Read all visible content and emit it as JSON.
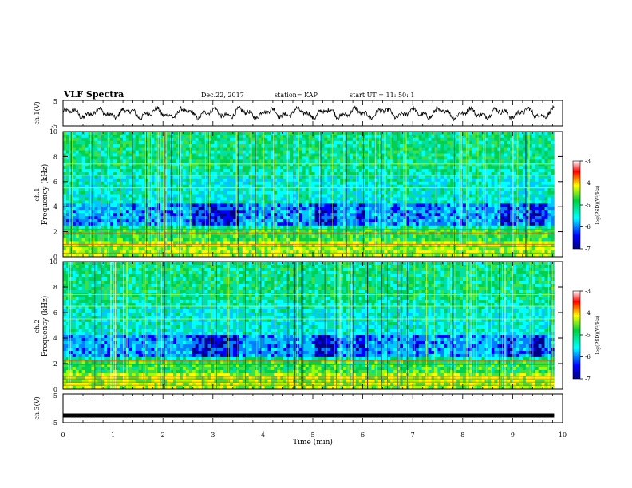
{
  "header": {
    "title": "VLF Spectra",
    "date": "Dec.22, 2017",
    "station": "station= KAP",
    "start": "start  UT =   11: 50: 1"
  },
  "chart_data": [
    {
      "type": "line",
      "panel": "ch1-waveform",
      "ylabel": "ch.1(V)",
      "ylim": [
        -5,
        5
      ],
      "yticks": [
        "5",
        "-5"
      ],
      "xlim": [
        0,
        10
      ],
      "description_values": "noisy waveform oscillating roughly between -2 and 2 V"
    },
    {
      "type": "heatmap",
      "panel": "ch1-spectrogram",
      "ylabel": "ch.1",
      "ylabel2": "Frequency (kHz)",
      "ylim": [
        0,
        10
      ],
      "yticks": [
        "0",
        "2",
        "4",
        "6",
        "8",
        "10"
      ],
      "xlim": [
        0,
        10
      ],
      "colorbar": {
        "label": "log(PSD)(V²/Hz)",
        "range": [
          -7,
          -3
        ],
        "ticks": [
          "-3",
          "-4",
          "-5",
          "-6",
          "-7"
        ]
      }
    },
    {
      "type": "heatmap",
      "panel": "ch2-spectrogram",
      "ylabel": "ch.2",
      "ylabel2": "Frequency (kHz)",
      "ylim": [
        0,
        10
      ],
      "yticks": [
        "0",
        "2",
        "4",
        "6",
        "8",
        "10"
      ],
      "xlim": [
        0,
        10
      ],
      "colorbar": {
        "label": "log(PSD)(V²/Hz)",
        "range": [
          -7,
          -3
        ],
        "ticks": [
          "-3",
          "-4",
          "-5",
          "-6",
          "-7"
        ]
      }
    },
    {
      "type": "line",
      "panel": "ch3-waveform",
      "ylabel": "ch.3(V)",
      "ylim": [
        -5,
        5
      ],
      "yticks": [
        "5",
        "-5"
      ],
      "xlim": [
        0,
        10
      ],
      "flat_value": -2.5
    }
  ],
  "xaxis": {
    "label": "Time (min)",
    "ticks": [
      "0",
      "1",
      "2",
      "3",
      "4",
      "5",
      "6",
      "7",
      "8",
      "9",
      "10"
    ]
  },
  "colors": {
    "low": "#00008b",
    "midlow": "#00c8ff",
    "mid": "#00d050",
    "midhigh": "#ffe000",
    "high": "#e00000"
  }
}
